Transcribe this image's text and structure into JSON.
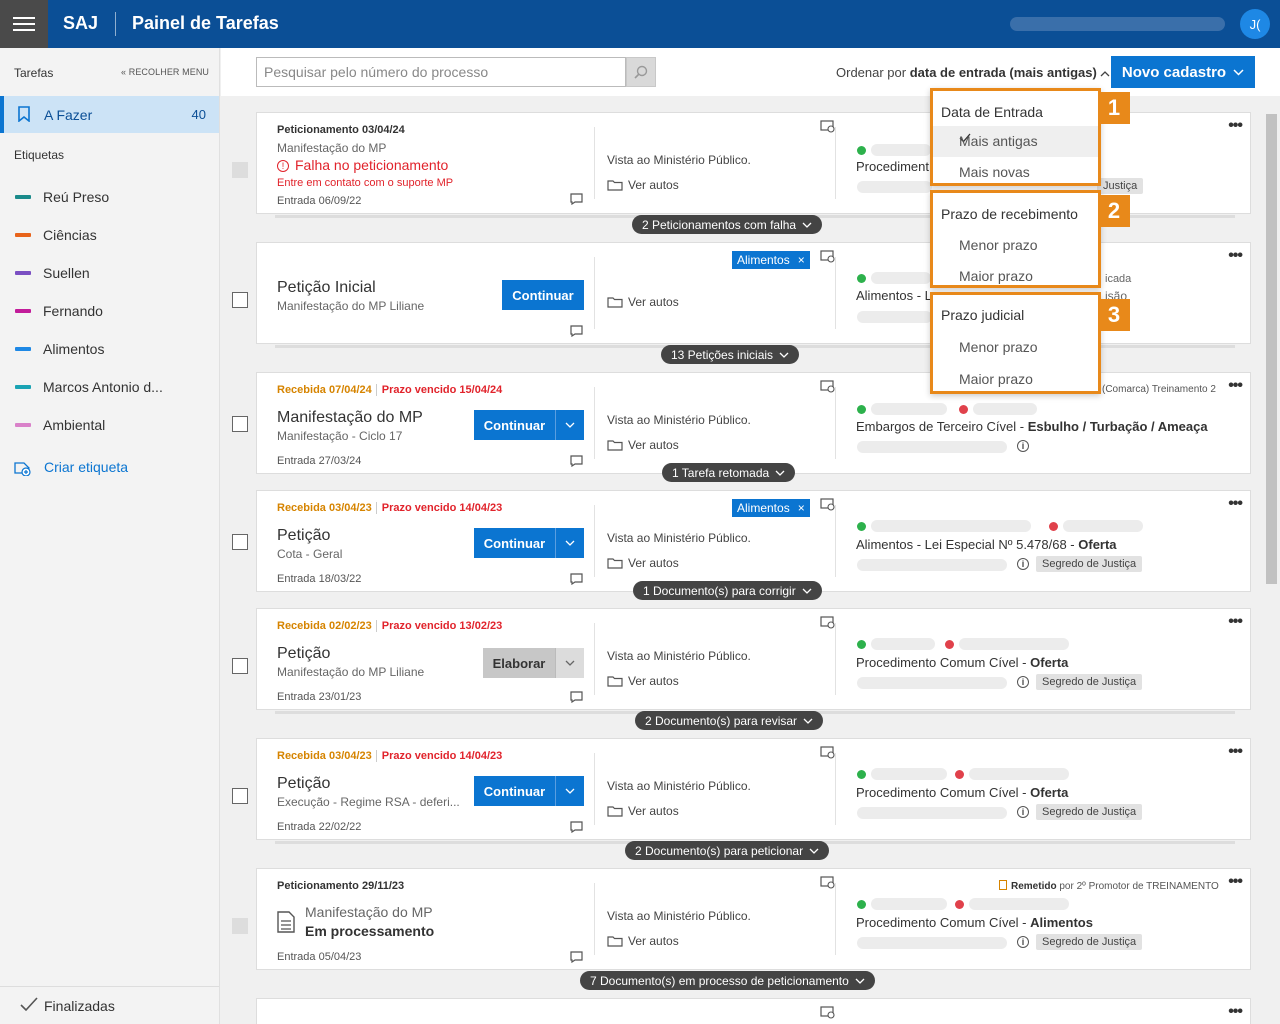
{
  "header": {
    "brand": "SAJ",
    "title": "Painel de Tarefas",
    "avatar": "J("
  },
  "sidebar": {
    "title": "Tarefas",
    "collapse": "RECOLHER MENU",
    "afazer": {
      "label": "A Fazer",
      "count": "40"
    },
    "etiquetas_title": "Etiquetas",
    "tags": [
      {
        "label": "Reú Preso",
        "color": "#1a8a8a"
      },
      {
        "label": "Ciências",
        "color": "#e8631a"
      },
      {
        "label": "Suellen",
        "color": "#7a4fc2"
      },
      {
        "label": "Fernando",
        "color": "#c21c9a"
      },
      {
        "label": "Alimentos",
        "color": "#1e88e5"
      },
      {
        "label": "Marcos Antonio d...",
        "color": "#1aa3b3"
      },
      {
        "label": "Ambiental",
        "color": "#d981c9"
      }
    ],
    "create": "Criar etiqueta",
    "finalizadas": "Finalizadas"
  },
  "toolbar": {
    "search_placeholder": "Pesquisar pelo número do processo",
    "order_prefix": "Ordenar por ",
    "order_value": "data de entrada (mais antigas)",
    "novo": "Novo cadastro"
  },
  "dropdown": {
    "s1": {
      "badge": "1",
      "header": "Data de Entrada",
      "items": [
        "Mais antigas",
        "Mais novas"
      ]
    },
    "s2": {
      "badge": "2",
      "header": "Prazo de recebimento",
      "items": [
        "Menor prazo",
        "Maior prazo"
      ]
    },
    "s3": {
      "badge": "3",
      "header": "Prazo judicial",
      "items": [
        "Menor prazo",
        "Maior prazo"
      ]
    }
  },
  "common": {
    "vista": "Vista ao Ministério Público.",
    "ver_autos": "Ver autos",
    "segredo": "Segredo de Justiça"
  },
  "cards": {
    "c1": {
      "date": "Peticionamento 03/04/24",
      "sub": "Manifestação do MP",
      "fail": "Falha no peticionamento",
      "fail_sub": "Entre em contato com o suporte MP",
      "entrada": "Entrada 06/09/22",
      "cls": "Procediment",
      "seg": "Justiça",
      "pill": "2 Peticionamentos com falha"
    },
    "c2": {
      "title": "Petição Inicial",
      "sub": "Manifestação do MP Liliane",
      "btn": "Continuar",
      "chip": "Alimentos",
      "cls": "Alimentos - L",
      "right_frag1": "icada",
      "right_frag2": "isão",
      "pill": "13 Petições iniciais"
    },
    "c3": {
      "rec": "Recebida 07/04/24",
      "pv": "Prazo vencido 15/04/24",
      "title": "Manifestação do MP",
      "sub": "Manifestação - Ciclo 17",
      "entrada": "Entrada 27/03/24",
      "btn": "Continuar",
      "cls_a": "Embargos de Terceiro Cível - ",
      "cls_b": "Esbulho / Turbação / Ameaça",
      "comarca": "(Comarca) Treinamento 2",
      "pill": "1 Tarefa retomada"
    },
    "c4": {
      "rec": "Recebida 03/04/23",
      "pv": "Prazo vencido 14/04/23",
      "title": "Petição",
      "sub": "Cota - Geral",
      "entrada": "Entrada 18/03/22",
      "btn": "Continuar",
      "chip": "Alimentos",
      "cls_a": "Alimentos - Lei Especial Nº 5.478/68 - ",
      "cls_b": "Oferta",
      "pill": "1 Documento(s) para corrigir"
    },
    "c5": {
      "rec": "Recebida 02/02/23",
      "pv": "Prazo vencido 13/02/23",
      "title": "Petição",
      "sub": "Manifestação do MP Liliane",
      "entrada": "Entrada 23/01/23",
      "btn": "Elaborar",
      "cls_a": "Procedimento Comum Cível - ",
      "cls_b": "Oferta",
      "pill": "2 Documento(s) para revisar"
    },
    "c6": {
      "rec": "Recebida 03/04/23",
      "pv": "Prazo vencido 14/04/23",
      "title": "Petição",
      "sub": "Execução - Regime RSA - deferi...",
      "entrada": "Entrada 22/02/22",
      "btn": "Continuar",
      "cls_a": "Procedimento Comum Cível - ",
      "cls_b": "Oferta",
      "pill": "2 Documento(s) para peticionar"
    },
    "c7": {
      "date": "Peticionamento 29/11/23",
      "sub": "Manifestação do MP",
      "status": "Em processamento",
      "entrada": "Entrada 05/04/23",
      "remet_b": "Remetido",
      "remet": " por 2º Promotor de TREINAMENTO",
      "cls_a": "Procedimento Comum Cível - ",
      "cls_b": "Alimentos",
      "pill": "7 Documento(s) em processo de peticionamento"
    }
  }
}
